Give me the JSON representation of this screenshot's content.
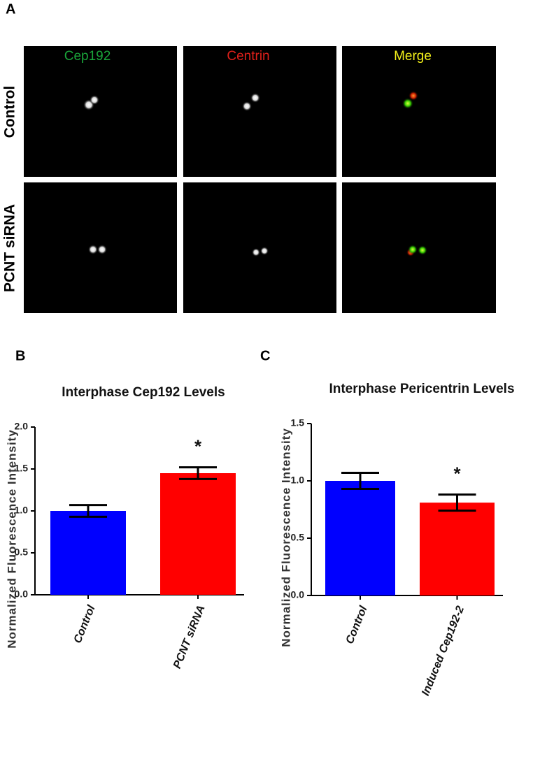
{
  "panel_labels": [
    "A",
    "B",
    "C"
  ],
  "micrographs": {
    "columns": [
      "Cep192",
      "Centrin",
      "Merge"
    ],
    "rows": [
      "Control",
      "PCNT siRNA"
    ]
  },
  "chart_data": [
    {
      "type": "bar",
      "title": "Interphase Cep192  Levels",
      "y_label": "Normalized Fluorescence Intensity",
      "categories": [
        "Control",
        "PCNT siRNA"
      ],
      "values": [
        1.0,
        1.45
      ],
      "errors": [
        0.07,
        0.07
      ],
      "colors": [
        "#0000ff",
        "#ff0000"
      ],
      "significance": [
        null,
        "*"
      ],
      "ylim": [
        0,
        2
      ],
      "yticks": [
        {
          "value": 0,
          "label": "0.0"
        },
        0.5,
        {
          "value": 1,
          "label": "1.0"
        },
        1.5,
        {
          "value": 2,
          "label": "2.0"
        }
      ]
    },
    {
      "type": "bar",
      "title": "Interphase Pericentrin Levels",
      "y_label": "Normalized Fluorescence Intensity",
      "categories": [
        "Control",
        "Induced Cep192-2"
      ],
      "values": [
        1.0,
        0.81
      ],
      "errors": [
        0.07,
        0.07
      ],
      "colors": [
        "#0000ff",
        "#ff0000"
      ],
      "significance": [
        null,
        "*"
      ],
      "ylim": [
        0,
        1.5
      ],
      "yticks": [
        {
          "value": 0,
          "label": "0.0"
        },
        0.5,
        {
          "value": 1,
          "label": "1.0"
        },
        1.5
      ]
    }
  ]
}
